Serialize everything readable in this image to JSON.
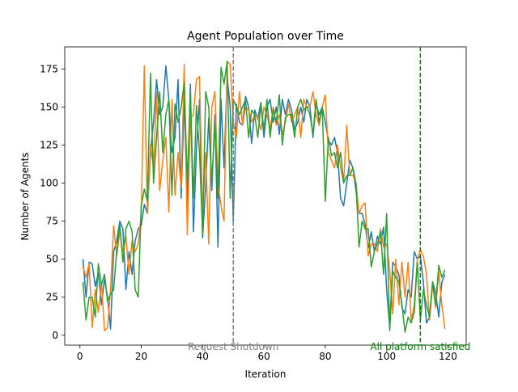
{
  "chart_data": {
    "type": "line",
    "title": "Agent Population over Time",
    "xlabel": "Iteration",
    "ylabel": "Number of Agents",
    "xlim": [
      -4.95,
      125.95
    ],
    "ylim": [
      -6.5,
      189.5
    ],
    "xticks": [
      0,
      20,
      40,
      60,
      80,
      100,
      120
    ],
    "yticks": [
      0,
      25,
      50,
      75,
      100,
      125,
      150,
      175
    ],
    "grid": false,
    "legend": "none",
    "series": [
      {
        "color": "#1f77b4",
        "x": [
          1,
          2,
          3,
          4,
          5,
          6,
          7,
          8,
          9,
          10,
          11,
          12,
          13,
          14,
          15,
          16,
          17,
          18,
          19,
          20,
          21,
          22,
          23,
          24,
          25,
          26,
          27,
          28,
          29,
          30,
          31,
          32,
          33,
          34,
          35,
          36,
          37,
          38,
          39,
          40,
          41,
          42,
          43,
          44,
          45,
          46,
          47,
          48,
          49,
          50,
          51,
          52,
          53,
          54,
          55,
          56,
          57,
          58,
          59,
          60,
          61,
          62,
          63,
          64,
          65,
          66,
          67,
          68,
          69,
          70,
          71,
          72,
          73,
          74,
          75,
          76,
          77,
          78,
          79,
          80,
          81,
          82,
          83,
          84,
          85,
          86,
          87,
          88,
          89,
          90,
          91,
          92,
          93,
          94,
          95,
          96,
          97,
          98,
          99,
          100,
          101,
          102,
          103,
          104,
          105,
          106,
          107,
          108,
          109,
          110,
          111,
          112,
          113,
          114,
          115,
          116,
          117,
          118,
          119
        ],
        "values": [
          50,
          25,
          48,
          47,
          32,
          41,
          20,
          37,
          25,
          4,
          55,
          62,
          75,
          70,
          30,
          55,
          40,
          62,
          70,
          72,
          86,
          80,
          120,
          140,
          168,
          145,
          150,
          177,
          155,
          120,
          130,
          168,
          90,
          155,
          85,
          165,
          68,
          122,
          155,
          64,
          98,
          143,
          95,
          145,
          58,
          155,
          110,
          170,
          150,
          75,
          152,
          140,
          138,
          157,
          150,
          126,
          148,
          142,
          153,
          130,
          150,
          155,
          140,
          150,
          132,
          155,
          145,
          155,
          148,
          135,
          140,
          150,
          140,
          155,
          150,
          130,
          152,
          145,
          150,
          140,
          128,
          125,
          130,
          120,
          90,
          85,
          100,
          115,
          110,
          95,
          80,
          80,
          73,
          57,
          68,
          55,
          65,
          60,
          71,
          30,
          5,
          48,
          45,
          40,
          18,
          14,
          30,
          25,
          55,
          50,
          52,
          35,
          8,
          12,
          35,
          28,
          12,
          35,
          40
        ]
      },
      {
        "color": "#ff7f0e",
        "x": [
          1,
          2,
          3,
          4,
          5,
          6,
          7,
          8,
          9,
          10,
          11,
          12,
          13,
          14,
          15,
          16,
          17,
          18,
          19,
          20,
          21,
          22,
          23,
          24,
          25,
          26,
          27,
          28,
          29,
          30,
          31,
          32,
          33,
          34,
          35,
          36,
          37,
          38,
          39,
          40,
          41,
          42,
          43,
          44,
          45,
          46,
          47,
          48,
          49,
          50,
          51,
          52,
          53,
          54,
          55,
          56,
          57,
          58,
          59,
          60,
          61,
          62,
          63,
          64,
          65,
          66,
          67,
          68,
          69,
          70,
          71,
          72,
          73,
          74,
          75,
          76,
          77,
          78,
          79,
          80,
          81,
          82,
          83,
          84,
          85,
          86,
          87,
          88,
          89,
          90,
          91,
          92,
          93,
          94,
          95,
          96,
          97,
          98,
          99,
          100,
          101,
          102,
          103,
          104,
          105,
          106,
          107,
          108,
          109,
          110,
          111,
          112,
          113,
          114,
          115,
          116,
          117,
          118,
          119
        ],
        "values": [
          45,
          38,
          47,
          5,
          30,
          15,
          35,
          3,
          5,
          30,
          72,
          52,
          68,
          55,
          65,
          40,
          62,
          55,
          60,
          80,
          177,
          80,
          125,
          110,
          160,
          95,
          115,
          130,
          81,
          155,
          92,
          120,
          97,
          178,
          66,
          142,
          145,
          168,
          170,
          80,
          120,
          60,
          150,
          160,
          100,
          85,
          75,
          180,
          178,
          140,
          130,
          160,
          138,
          150,
          148,
          140,
          145,
          143,
          135,
          150,
          145,
          135,
          150,
          138,
          145,
          132,
          140,
          152,
          140,
          145,
          150,
          130,
          155,
          150,
          150,
          160,
          145,
          138,
          150,
          158,
          120,
          115,
          110,
          125,
          110,
          100,
          138,
          105,
          105,
          100,
          80,
          85,
          87,
          52,
          60,
          60,
          55,
          70,
          58,
          60,
          43,
          14,
          50,
          20,
          48,
          25,
          48,
          10,
          20,
          50,
          56,
          52,
          40,
          10,
          33,
          18,
          42,
          20,
          4
        ]
      },
      {
        "color": "#2ca02c",
        "x": [
          1,
          2,
          3,
          4,
          5,
          6,
          7,
          8,
          9,
          10,
          11,
          12,
          13,
          14,
          15,
          16,
          17,
          18,
          19,
          20,
          21,
          22,
          23,
          24,
          25,
          26,
          27,
          28,
          29,
          30,
          31,
          32,
          33,
          34,
          35,
          36,
          37,
          38,
          39,
          40,
          41,
          42,
          43,
          44,
          45,
          46,
          47,
          48,
          49,
          50,
          51,
          52,
          53,
          54,
          55,
          56,
          57,
          58,
          59,
          60,
          61,
          62,
          63,
          64,
          65,
          66,
          67,
          68,
          69,
          70,
          71,
          72,
          73,
          74,
          75,
          76,
          77,
          78,
          79,
          80,
          81,
          82,
          83,
          84,
          85,
          86,
          87,
          88,
          89,
          90,
          91,
          92,
          93,
          94,
          95,
          96,
          97,
          98,
          99,
          100,
          101,
          102,
          103,
          104,
          105,
          106,
          107,
          108,
          109,
          110,
          111,
          112,
          113,
          114,
          115,
          116,
          117,
          118,
          119
        ],
        "values": [
          35,
          10,
          25,
          25,
          12,
          47,
          33,
          40,
          22,
          27,
          30,
          55,
          73,
          48,
          70,
          75,
          68,
          30,
          25,
          85,
          96,
          88,
          172,
          100,
          130,
          160,
          120,
          145,
          155,
          92,
          152,
          140,
          150,
          166,
          100,
          160,
          90,
          151,
          120,
          66,
          160,
          150,
          100,
          140,
          90,
          176,
          165,
          180,
          90,
          155,
          150,
          145,
          150,
          155,
          130,
          148,
          145,
          130,
          152,
          135,
          155,
          130,
          148,
          140,
          158,
          125,
          143,
          145,
          145,
          130,
          150,
          155,
          148,
          150,
          145,
          132,
          155,
          140,
          150,
          88,
          130,
          118,
          120,
          110,
          120,
          100,
          105,
          105,
          110,
          100,
          58,
          75,
          70,
          70,
          45,
          55,
          60,
          68,
          40,
          80,
          3,
          42,
          38,
          35,
          20,
          2,
          12,
          8,
          15,
          48,
          10,
          30,
          20,
          12,
          35,
          20,
          46,
          38,
          43
        ]
      }
    ],
    "vlines": [
      {
        "x": 50,
        "color": "#808080",
        "style": "dashed",
        "label": "Request Shutdown"
      },
      {
        "x": 111,
        "color": "#008000",
        "style": "dashed",
        "label": "All platform satisfied"
      }
    ]
  }
}
